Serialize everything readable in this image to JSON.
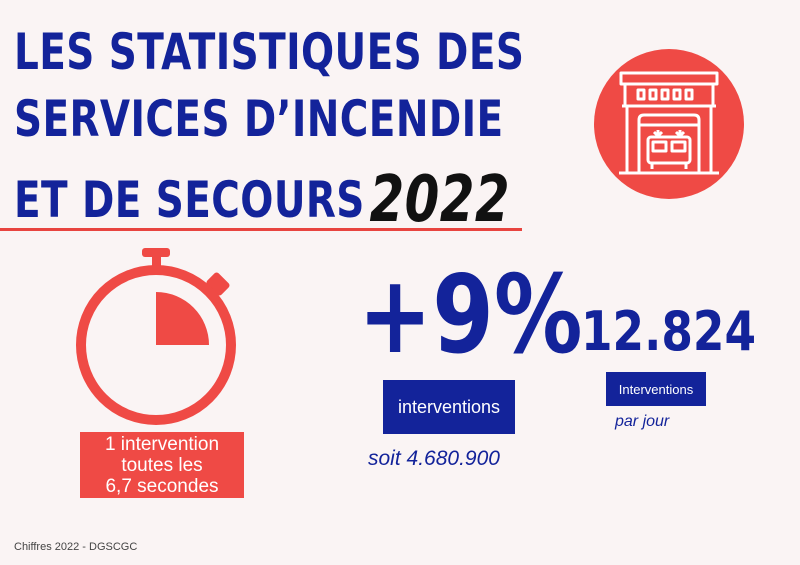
{
  "title": {
    "line1": "LES STATISTIQUES DES",
    "line2": "SERVICES D’INCENDIE",
    "line3": "ET DE SECOURS",
    "year": "2022"
  },
  "colors": {
    "blue": "#13239a",
    "red": "#ef4a45",
    "background": "#faf4f4"
  },
  "icons": {
    "header": "fire-station-icon",
    "left": "stopwatch-icon"
  },
  "stat_frequency": {
    "line1": "1 intervention",
    "line2": "toutes les",
    "line3": "6,7 secondes"
  },
  "stat_growth": {
    "value": "+9%",
    "label": "interventions",
    "detail": "soit 4.680.900"
  },
  "stat_daily": {
    "value": "12.824",
    "label": "Interventions",
    "detail": "par jour"
  },
  "source": "Chiffres 2022 - DGSCGC"
}
